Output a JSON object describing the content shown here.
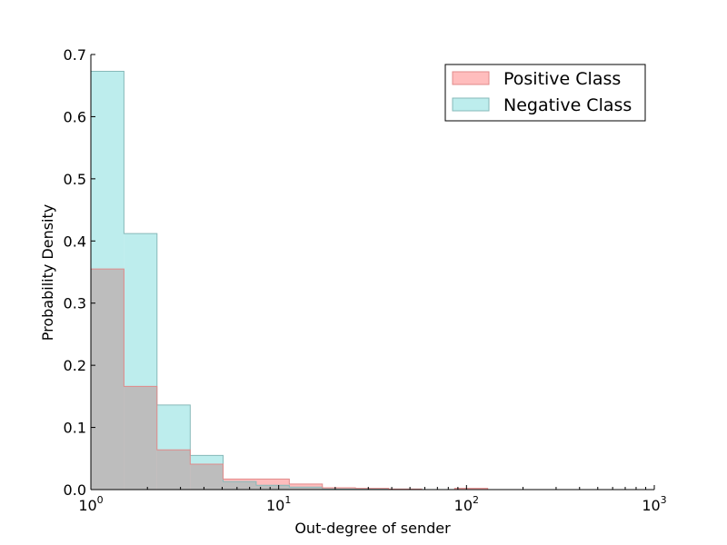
{
  "chart_data": {
    "type": "histogram",
    "xscale": "log",
    "xlabel": "Out-degree of sender",
    "ylabel": "Probability Density",
    "xlim": [
      1,
      1000
    ],
    "ylim": [
      0,
      0.7
    ],
    "yticks": [
      "0.0",
      "0.1",
      "0.2",
      "0.3",
      "0.4",
      "0.5",
      "0.6",
      "0.7"
    ],
    "xticks": [
      {
        "value": 1,
        "base": "10",
        "exp": "0"
      },
      {
        "value": 10,
        "base": "10",
        "exp": "1"
      },
      {
        "value": 100,
        "base": "10",
        "exp": "2"
      },
      {
        "value": 1000,
        "base": "10",
        "exp": "3"
      }
    ],
    "bin_edges": [
      1,
      1.5,
      2.25,
      3.38,
      5.06,
      7.59,
      11.39,
      17.09,
      25.63,
      38.44,
      57.67,
      86.5,
      129.7,
      194.6,
      291.9,
      437.9,
      656.8,
      1000
    ],
    "legend_position": "upper right",
    "overlap_color": "#bdbdbd",
    "series": [
      {
        "name": "Positive Class",
        "color": "#ffbdbd",
        "edge_color": "#e08a8a",
        "values": [
          0.355,
          0.166,
          0.064,
          0.041,
          0.017,
          0.017,
          0.009,
          0.003,
          0.002,
          0.001,
          0.0,
          0.002,
          0.0,
          0.0,
          0.0,
          0.0,
          0.0
        ]
      },
      {
        "name": "Negative Class",
        "color": "#bdeded",
        "edge_color": "#86b9b9",
        "values": [
          0.673,
          0.412,
          0.136,
          0.055,
          0.013,
          0.007,
          0.004,
          0.001,
          0.001,
          0.0,
          0.0,
          0.0,
          0.0,
          0.0,
          0.0,
          0.0,
          0.0
        ]
      }
    ]
  }
}
